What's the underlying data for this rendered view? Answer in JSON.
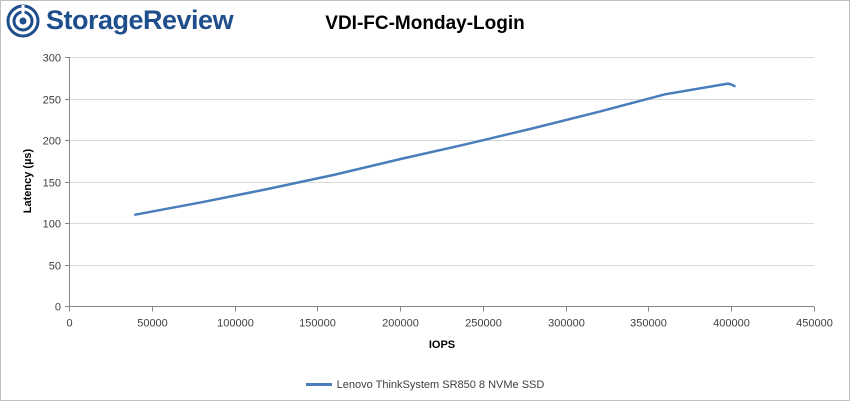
{
  "branding": {
    "logo_text": "StorageReview",
    "logo_icon": "storagereview-logo-icon",
    "brand_color": "#1f4e8c"
  },
  "chart_data": {
    "type": "line",
    "title": "VDI-FC-Monday-Login",
    "xlabel": "IOPS",
    "ylabel": "Latency (µs)",
    "xlim": [
      0,
      450000
    ],
    "ylim": [
      0,
      300
    ],
    "xticks": [
      0,
      50000,
      100000,
      150000,
      200000,
      250000,
      300000,
      350000,
      400000,
      450000
    ],
    "yticks": [
      0,
      50,
      100,
      150,
      200,
      250,
      300
    ],
    "xtick_labels": [
      "0",
      "50000",
      "100000",
      "150000",
      "200000",
      "250000",
      "300000",
      "350000",
      "400000",
      "450000"
    ],
    "ytick_labels": [
      "0",
      "50",
      "100",
      "150",
      "200",
      "250",
      "300"
    ],
    "grid": "horizontal",
    "legend_position": "bottom",
    "series": [
      {
        "name": "Lenovo ThinkSystem SR850 8 NVMe SSD",
        "color": "#4a7ebb",
        "x": [
          40000,
          80000,
          120000,
          160000,
          200000,
          240000,
          280000,
          320000,
          360000,
          398000,
          400000,
          402000
        ],
        "y": [
          110,
          125,
          141,
          158,
          177,
          195,
          214,
          234,
          255,
          268,
          267,
          265
        ]
      }
    ]
  }
}
